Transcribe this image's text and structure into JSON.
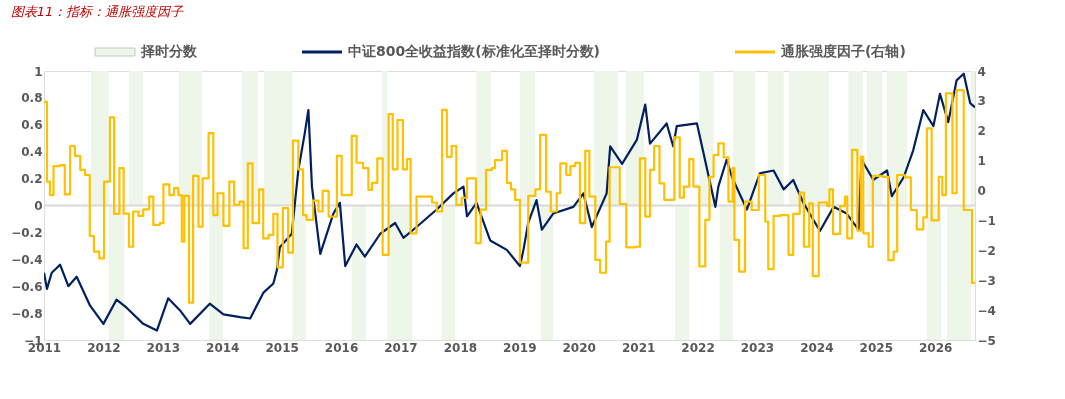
{
  "chart_data": {
    "type": "line",
    "title": "图表11：指标：通胀强度因子",
    "xlim": [
      2011,
      2026.67
    ],
    "xticks": [
      2011,
      2012,
      2013,
      2014,
      2015,
      2016,
      2017,
      2018,
      2019,
      2020,
      2021,
      2022,
      2023,
      2024,
      2025,
      2026
    ],
    "ylim": [
      -1,
      1
    ],
    "yticks": [
      -1,
      -0.8,
      -0.6,
      -0.4,
      -0.2,
      0,
      0.2,
      0.4,
      0.6,
      0.8,
      1
    ],
    "y2lim": [
      -5,
      4
    ],
    "y2ticks": [
      -5,
      -4,
      -3,
      -2,
      -1,
      0,
      1,
      2,
      3,
      4
    ],
    "grid": false,
    "legend": "top",
    "ref_lines": [
      {
        "axis": "y",
        "value": 0,
        "color": "#d9d9d9"
      }
    ],
    "series": [
      {
        "name": "择时分数",
        "type": "area",
        "color": "#eef5e9",
        "x": [
          2011.0,
          2011.79,
          2012.09,
          2012.35,
          2012.43,
          2012.67,
          2013.27,
          2013.66,
          2013.78,
          2014.01,
          2014.33,
          2014.6,
          2014.7,
          2015.18,
          2015.41,
          2016.18,
          2016.42,
          2016.69,
          2016.78,
          2017.2,
          2017.69,
          2017.92,
          2018.28,
          2018.52,
          2019.01,
          2019.27,
          2019.36,
          2019.57,
          2020.26,
          2020.66,
          2020.79,
          2021.1,
          2021.62,
          2021.86,
          2022.03,
          2022.27,
          2022.37,
          2022.59,
          2022.6,
          2022.97,
          2023.18,
          2023.45,
          2023.54,
          2024.21,
          2024.54,
          2024.78,
          2024.85,
          2025.11,
          2025.19,
          2025.53,
          2025.86,
          2026.1,
          2026.2,
          2026.6,
          2026.67
        ],
        "values": [
          0,
          1,
          -1,
          0,
          1,
          0,
          1,
          0,
          -1,
          0,
          1,
          0,
          1,
          -1,
          0,
          -1,
          0,
          1,
          -1,
          0,
          -1,
          0,
          1,
          0,
          1,
          0,
          -1,
          0,
          1,
          0,
          1,
          0,
          -1,
          0,
          1,
          0,
          -1,
          0,
          1,
          0,
          1,
          0,
          1,
          0,
          1,
          0,
          1,
          0,
          1,
          0,
          -1,
          0,
          -1,
          1,
          1
        ]
      },
      {
        "name": "中证800全收益指数(标准化至择时分数)",
        "color": "#002060",
        "x": [
          2011.0,
          2011.05,
          2011.13,
          2011.27,
          2011.41,
          2011.55,
          2011.77,
          2012.0,
          2012.22,
          2012.39,
          2012.67,
          2012.9,
          2013.09,
          2013.29,
          2013.46,
          2013.79,
          2014.02,
          2014.3,
          2014.47,
          2014.69,
          2014.86,
          2014.92,
          2014.97,
          2015.17,
          2015.28,
          2015.39,
          2015.45,
          2015.51,
          2015.65,
          2015.87,
          2015.98,
          2016.07,
          2016.26,
          2016.4,
          2016.66,
          2016.91,
          2017.05,
          2017.27,
          2017.61,
          2017.89,
          2018.06,
          2018.12,
          2018.28,
          2018.51,
          2018.79,
          2019.01,
          2019.07,
          2019.15,
          2019.29,
          2019.38,
          2019.57,
          2019.91,
          2020.08,
          2020.22,
          2020.47,
          2020.53,
          2020.73,
          2020.98,
          2021.12,
          2021.2,
          2021.48,
          2021.59,
          2021.65,
          2021.99,
          2022.1,
          2022.3,
          2022.35,
          2022.49,
          2022.58,
          2022.83,
          2023.05,
          2023.28,
          2023.45,
          2023.61,
          2023.78,
          2024.06,
          2024.29,
          2024.51,
          2024.71,
          2024.76,
          2024.96,
          2025.19,
          2025.27,
          2025.47,
          2025.63,
          2025.8,
          2025.97,
          2026.08,
          2026.22,
          2026.36,
          2026.48,
          2026.59,
          2026.67
        ],
        "values": [
          -0.5,
          -0.62,
          -0.5,
          -0.44,
          -0.6,
          -0.53,
          -0.74,
          -0.88,
          -0.7,
          -0.76,
          -0.88,
          -0.93,
          -0.69,
          -0.78,
          -0.88,
          -0.73,
          -0.81,
          -0.83,
          -0.84,
          -0.65,
          -0.58,
          -0.48,
          -0.31,
          -0.21,
          0.26,
          0.54,
          0.71,
          0.14,
          -0.36,
          -0.06,
          0.02,
          -0.45,
          -0.29,
          -0.38,
          -0.21,
          -0.13,
          -0.24,
          -0.16,
          -0.03,
          0.09,
          0.14,
          -0.08,
          0.02,
          -0.26,
          -0.33,
          -0.45,
          -0.33,
          -0.13,
          0.04,
          -0.18,
          -0.06,
          -0.01,
          0.09,
          -0.16,
          0.09,
          0.44,
          0.31,
          0.49,
          0.75,
          0.46,
          0.61,
          0.44,
          0.59,
          0.61,
          0.39,
          -0.01,
          0.14,
          0.34,
          0.21,
          -0.03,
          0.24,
          0.26,
          0.12,
          0.19,
          0.02,
          -0.19,
          -0.01,
          -0.06,
          -0.18,
          0.34,
          0.19,
          0.26,
          0.07,
          0.21,
          0.41,
          0.71,
          0.59,
          0.83,
          0.62,
          0.93,
          0.98,
          0.76,
          0.73
        ]
      },
      {
        "name": "通胀强度因子(右轴)",
        "type": "step",
        "axis": "y2",
        "color": "#ffc000",
        "x": [
          2011.0,
          2011.05,
          2011.1,
          2011.16,
          2011.27,
          2011.35,
          2011.44,
          2011.52,
          2011.61,
          2011.69,
          2011.77,
          2011.84,
          2011.93,
          2012.01,
          2012.11,
          2012.18,
          2012.27,
          2012.34,
          2012.43,
          2012.5,
          2012.59,
          2012.67,
          2012.77,
          2012.84,
          2012.95,
          2013.01,
          2013.11,
          2013.19,
          2013.26,
          2013.32,
          2013.36,
          2013.44,
          2013.51,
          2013.6,
          2013.67,
          2013.77,
          2013.85,
          2013.92,
          2014.02,
          2014.12,
          2014.2,
          2014.29,
          2014.36,
          2014.43,
          2014.51,
          2014.62,
          2014.69,
          2014.78,
          2014.86,
          2014.93,
          2015.02,
          2015.11,
          2015.19,
          2015.28,
          2015.36,
          2015.42,
          2015.53,
          2015.62,
          2015.69,
          2015.79,
          2015.93,
          2016.01,
          2016.18,
          2016.26,
          2016.37,
          2016.46,
          2016.52,
          2016.61,
          2016.7,
          2016.8,
          2016.87,
          2016.95,
          2017.04,
          2017.11,
          2017.17,
          2017.27,
          2017.53,
          2017.61,
          2017.7,
          2017.78,
          2017.86,
          2017.94,
          2018.03,
          2018.12,
          2018.27,
          2018.35,
          2018.44,
          2018.54,
          2018.59,
          2018.71,
          2018.79,
          2018.86,
          2018.93,
          2019.01,
          2019.15,
          2019.27,
          2019.35,
          2019.45,
          2019.53,
          2019.63,
          2019.69,
          2019.79,
          2019.86,
          2019.94,
          2020.02,
          2020.11,
          2020.18,
          2020.28,
          2020.36,
          2020.46,
          2020.52,
          2020.69,
          2020.8,
          2020.95,
          2021.03,
          2021.12,
          2021.2,
          2021.27,
          2021.36,
          2021.44,
          2021.61,
          2021.7,
          2021.77,
          2021.86,
          2021.93,
          2022.03,
          2022.13,
          2022.2,
          2022.27,
          2022.35,
          2022.44,
          2022.52,
          2022.59,
          2022.62,
          2022.7,
          2022.8,
          2022.91,
          2023.03,
          2023.14,
          2023.19,
          2023.28,
          2023.39,
          2023.53,
          2023.61,
          2023.72,
          2023.79,
          2023.88,
          2023.94,
          2024.04,
          2024.18,
          2024.22,
          2024.28,
          2024.4,
          2024.48,
          2024.52,
          2024.6,
          2024.69,
          2024.75,
          2024.79,
          2024.88,
          2024.95,
          2025.12,
          2025.21,
          2025.3,
          2025.36,
          2025.49,
          2025.59,
          2025.69,
          2025.8,
          2025.86,
          2025.94,
          2026.06,
          2026.12,
          2026.18,
          2026.29,
          2026.36,
          2026.48,
          2026.62,
          2026.67
        ],
        "values": [
          2.97,
          0.3,
          -0.15,
          0.82,
          0.85,
          -0.13,
          1.49,
          1.16,
          0.69,
          0.52,
          -1.52,
          -2.04,
          -2.27,
          0.3,
          2.45,
          -0.78,
          0.75,
          -0.77,
          -1.88,
          -0.7,
          -0.85,
          -0.63,
          -0.2,
          -1.15,
          -1.09,
          0.21,
          -0.15,
          0.08,
          -0.15,
          -1.71,
          -0.18,
          -3.75,
          0.49,
          -1.21,
          0.41,
          1.92,
          -0.82,
          -0.09,
          -1.18,
          0.3,
          -0.48,
          -0.37,
          -1.93,
          0.91,
          -1.09,
          0.04,
          -1.6,
          -1.48,
          -0.78,
          -2.57,
          -0.59,
          -2.08,
          1.67,
          0.71,
          -0.82,
          -0.98,
          -0.34,
          -0.7,
          -0.01,
          -0.87,
          1.16,
          -0.15,
          1.83,
          0.93,
          0.75,
          0.02,
          0.26,
          1.08,
          -2.15,
          2.56,
          0.71,
          2.36,
          0.71,
          1.05,
          -1.43,
          -0.2,
          -0.4,
          -0.7,
          2.7,
          1.13,
          1.49,
          -0.48,
          -0.24,
          0.41,
          -1.76,
          -0.64,
          0.69,
          0.75,
          1.02,
          1.33,
          0.26,
          0.04,
          -0.31,
          -2.41,
          -0.18,
          0.04,
          1.86,
          -0.04,
          -0.7,
          -0.09,
          0.91,
          0.52,
          0.82,
          0.93,
          -1.09,
          1.33,
          -0.2,
          -2.32,
          -2.75,
          -1.71,
          0.78,
          -0.45,
          -1.9,
          -1.88,
          1.08,
          -0.87,
          0.69,
          1.49,
          0.24,
          -0.31,
          1.78,
          -0.24,
          0.13,
          1.05,
          0.13,
          -2.54,
          -0.98,
          0.46,
          1.19,
          1.58,
          1.11,
          -0.37,
          0.75,
          -1.65,
          -2.71,
          -0.37,
          -0.65,
          0.52,
          -1.04,
          -2.63,
          -0.85,
          -0.82,
          -2.15,
          -0.78,
          -0.07,
          -1.88,
          -0.43,
          -2.86,
          -0.4,
          -0.52,
          0.04,
          -1.45,
          -0.52,
          -0.2,
          -1.6,
          1.36,
          -1.34,
          1.13,
          -1.43,
          -1.88,
          0.49,
          0.46,
          -2.33,
          -2.04,
          0.52,
          0.44,
          -0.65,
          -1.3,
          -0.9,
          2.08,
          -1.0,
          0.46,
          -0.15,
          3.25,
          -0.09,
          3.36,
          -0.65,
          -3.09,
          -3.09
        ]
      }
    ]
  }
}
